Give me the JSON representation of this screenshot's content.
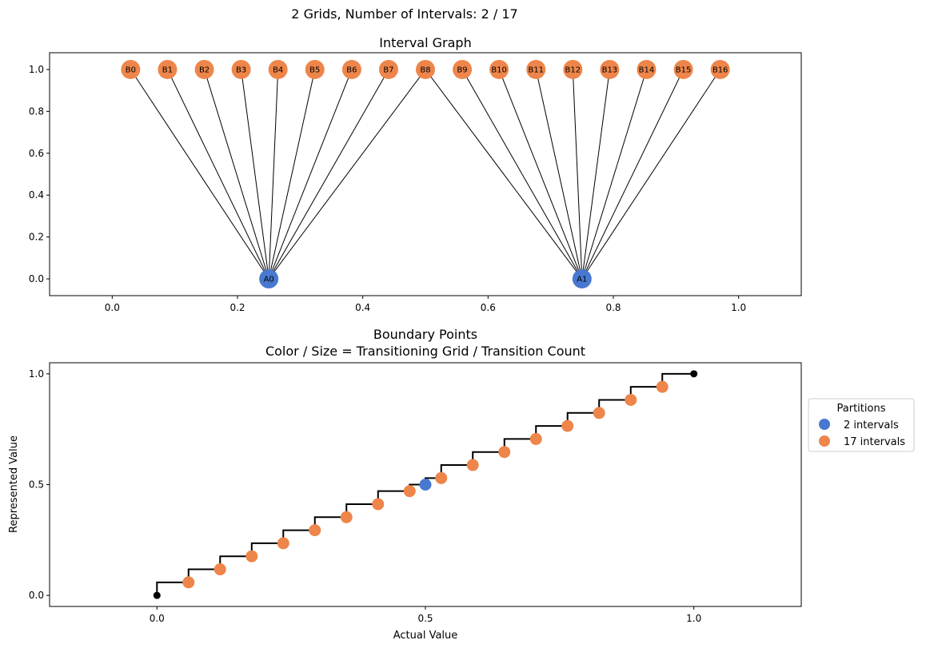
{
  "figure": {
    "suptitle": "2 Grids, Number of Intervals: 2 / 17"
  },
  "colors": {
    "grid_a": "#4878cf",
    "grid_b": "#ee854a",
    "endpoint": "#000000",
    "edge": "#000000"
  },
  "chart_data": [
    {
      "type": "network",
      "title": "Interval Graph",
      "xlabel": "",
      "ylabel": "",
      "xlim": [
        -0.1,
        1.1
      ],
      "ylim": [
        -0.08,
        1.08
      ],
      "xticks": [
        "0.0",
        "0.2",
        "0.4",
        "0.6",
        "0.8",
        "1.0"
      ],
      "yticks": [
        "0.0",
        "0.2",
        "0.4",
        "0.6",
        "0.8",
        "1.0"
      ],
      "grid": false,
      "nodes": [
        {
          "label": "A0",
          "x": 0.25,
          "y": 0,
          "grid": "a"
        },
        {
          "label": "A1",
          "x": 0.75,
          "y": 0,
          "grid": "a"
        },
        {
          "label": "B0",
          "x": 0.0294,
          "y": 1,
          "grid": "b"
        },
        {
          "label": "B1",
          "x": 0.0882,
          "y": 1,
          "grid": "b"
        },
        {
          "label": "B2",
          "x": 0.1471,
          "y": 1,
          "grid": "b"
        },
        {
          "label": "B3",
          "x": 0.2059,
          "y": 1,
          "grid": "b"
        },
        {
          "label": "B4",
          "x": 0.2647,
          "y": 1,
          "grid": "b"
        },
        {
          "label": "B5",
          "x": 0.3235,
          "y": 1,
          "grid": "b"
        },
        {
          "label": "B6",
          "x": 0.3824,
          "y": 1,
          "grid": "b"
        },
        {
          "label": "B7",
          "x": 0.4412,
          "y": 1,
          "grid": "b"
        },
        {
          "label": "B8",
          "x": 0.5,
          "y": 1,
          "grid": "b"
        },
        {
          "label": "B9",
          "x": 0.5588,
          "y": 1,
          "grid": "b"
        },
        {
          "label": "B10",
          "x": 0.6176,
          "y": 1,
          "grid": "b"
        },
        {
          "label": "B11",
          "x": 0.6765,
          "y": 1,
          "grid": "b"
        },
        {
          "label": "B12",
          "x": 0.7353,
          "y": 1,
          "grid": "b"
        },
        {
          "label": "B13",
          "x": 0.7941,
          "y": 1,
          "grid": "b"
        },
        {
          "label": "B14",
          "x": 0.8529,
          "y": 1,
          "grid": "b"
        },
        {
          "label": "B15",
          "x": 0.9118,
          "y": 1,
          "grid": "b"
        },
        {
          "label": "B16",
          "x": 0.9706,
          "y": 1,
          "grid": "b"
        }
      ],
      "edges": [
        [
          "A0",
          "B0"
        ],
        [
          "A0",
          "B1"
        ],
        [
          "A0",
          "B2"
        ],
        [
          "A0",
          "B3"
        ],
        [
          "A0",
          "B4"
        ],
        [
          "A0",
          "B5"
        ],
        [
          "A0",
          "B6"
        ],
        [
          "A0",
          "B7"
        ],
        [
          "A0",
          "B8"
        ],
        [
          "A1",
          "B8"
        ],
        [
          "A1",
          "B9"
        ],
        [
          "A1",
          "B10"
        ],
        [
          "A1",
          "B11"
        ],
        [
          "A1",
          "B12"
        ],
        [
          "A1",
          "B13"
        ],
        [
          "A1",
          "B14"
        ],
        [
          "A1",
          "B15"
        ],
        [
          "A1",
          "B16"
        ]
      ]
    },
    {
      "type": "scatter",
      "title": "Boundary Points",
      "subtitle": "Color / Size = Transitioning Grid / Transition Count",
      "xlabel": "Actual Value",
      "ylabel": "Represented Value",
      "xlim": [
        -0.2,
        1.2
      ],
      "ylim": [
        -0.05,
        1.05
      ],
      "xticks": [
        "0.0",
        "0.5",
        "1.0"
      ],
      "yticks": [
        "0.0",
        "0.5",
        "1.0"
      ],
      "grid": false,
      "legend": {
        "title": "Partitions",
        "placement": "outside-right",
        "entries": [
          "2 intervals",
          "17 intervals"
        ]
      },
      "step_line": {
        "x": [
          0,
          0.0588,
          0.1176,
          0.1765,
          0.2353,
          0.2941,
          0.3529,
          0.4118,
          0.4706,
          0.5,
          0.5294,
          0.5882,
          0.6471,
          0.7059,
          0.7647,
          0.8235,
          0.8824,
          0.9412,
          1.0
        ],
        "y": [
          0.0588,
          0.1176,
          0.1765,
          0.2353,
          0.2941,
          0.3529,
          0.4118,
          0.4706,
          0.5,
          0.5294,
          0.5882,
          0.6471,
          0.7059,
          0.7647,
          0.8235,
          0.8824,
          0.9412,
          1.0,
          1.0
        ]
      },
      "points": [
        {
          "x": 0,
          "y": 0,
          "group": "endpoint"
        },
        {
          "x": 0.0588,
          "y": 0.0588,
          "group": "17 intervals"
        },
        {
          "x": 0.1176,
          "y": 0.1176,
          "group": "17 intervals"
        },
        {
          "x": 0.1765,
          "y": 0.1765,
          "group": "17 intervals"
        },
        {
          "x": 0.2353,
          "y": 0.2353,
          "group": "17 intervals"
        },
        {
          "x": 0.2941,
          "y": 0.2941,
          "group": "17 intervals"
        },
        {
          "x": 0.3529,
          "y": 0.3529,
          "group": "17 intervals"
        },
        {
          "x": 0.4118,
          "y": 0.4118,
          "group": "17 intervals"
        },
        {
          "x": 0.4706,
          "y": 0.4706,
          "group": "17 intervals"
        },
        {
          "x": 0.5,
          "y": 0.5,
          "group": "2 intervals"
        },
        {
          "x": 0.5294,
          "y": 0.5294,
          "group": "17 intervals"
        },
        {
          "x": 0.5882,
          "y": 0.5882,
          "group": "17 intervals"
        },
        {
          "x": 0.6471,
          "y": 0.6471,
          "group": "17 intervals"
        },
        {
          "x": 0.7059,
          "y": 0.7059,
          "group": "17 intervals"
        },
        {
          "x": 0.7647,
          "y": 0.7647,
          "group": "17 intervals"
        },
        {
          "x": 0.8235,
          "y": 0.8235,
          "group": "17 intervals"
        },
        {
          "x": 0.8824,
          "y": 0.8824,
          "group": "17 intervals"
        },
        {
          "x": 0.9412,
          "y": 0.9412,
          "group": "17 intervals"
        },
        {
          "x": 1.0,
          "y": 1.0,
          "group": "endpoint"
        }
      ]
    }
  ]
}
